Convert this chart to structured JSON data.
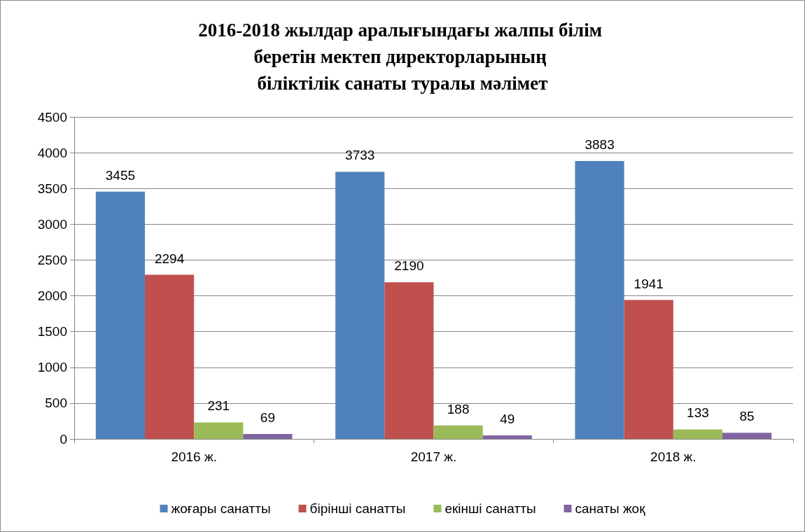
{
  "chart_data": {
    "type": "bar",
    "title": "2016-2018 жылдар аралығындағы жалпы білім беретін мектеп директорларының біліктілік санаты туралы мәлімет",
    "categories": [
      "2016 ж.",
      "2017 ж.",
      "2018 ж."
    ],
    "series": [
      {
        "name": "жоғары санатты",
        "color": "#4f81bd",
        "values": [
          3455,
          3733,
          3883
        ]
      },
      {
        "name": "бірінші санатты",
        "color": "#c0504d",
        "values": [
          2294,
          2190,
          1941
        ]
      },
      {
        "name": "екінші санатты",
        "color": "#9bbb59",
        "values": [
          231,
          188,
          133
        ]
      },
      {
        "name": "санаты жоқ",
        "color": "#8064a2",
        "values": [
          69,
          49,
          85
        ]
      }
    ],
    "ylim": [
      0,
      4500
    ],
    "yticks": [
      0,
      500,
      1000,
      1500,
      2000,
      2500,
      3000,
      3500,
      4000,
      4500
    ],
    "grid": "y",
    "legend": "bottom",
    "data_labels": true
  }
}
